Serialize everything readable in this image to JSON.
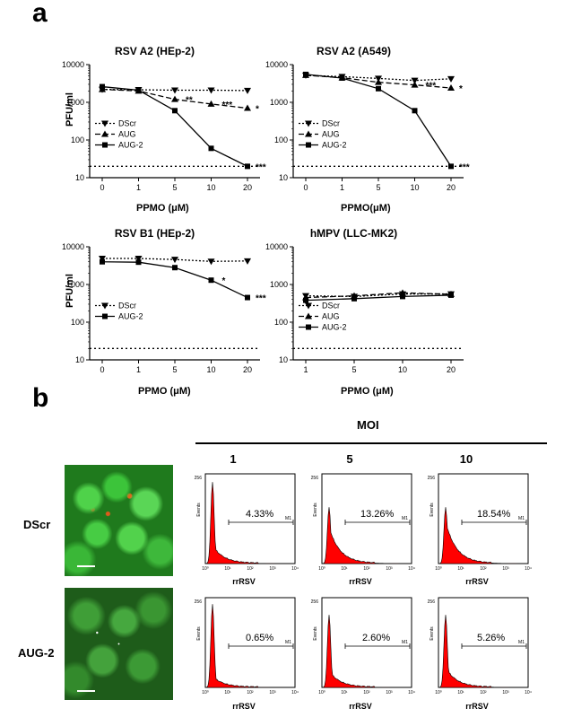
{
  "panel_a_label": "a",
  "panel_b_label": "b",
  "chart_data": [
    {
      "type": "line",
      "title": "RSV A2 (HEp-2)",
      "xlabel": "PPMO (μM)",
      "ylabel": "PFU/ml",
      "yscale": "log",
      "ylim": [
        10,
        10000
      ],
      "y_tick_labels": [
        "10",
        "100",
        "1000",
        "10000"
      ],
      "categories": [
        "0",
        "1",
        "5",
        "10",
        "20"
      ],
      "detection_limit": 20,
      "series": [
        {
          "name": "DScr",
          "marker": "triangle-down",
          "dash": "dotted",
          "values": [
            2200,
            2150,
            2100,
            2100,
            2050
          ]
        },
        {
          "name": "AUG",
          "marker": "triangle-up",
          "dash": "dashed",
          "values": [
            2200,
            2000,
            1200,
            900,
            700
          ]
        },
        {
          "name": "AUG-2",
          "marker": "square",
          "dash": "solid",
          "values": [
            2600,
            2100,
            600,
            60,
            20
          ]
        }
      ],
      "annotations": [
        {
          "category": "5",
          "text": "**"
        },
        {
          "category": "10",
          "text": "***"
        },
        {
          "category": "20",
          "text": "*"
        },
        {
          "category": "20",
          "text": "***"
        }
      ]
    },
    {
      "type": "line",
      "title": "RSV A2 (A549)",
      "xlabel": "PPMO(μM)",
      "ylabel": "",
      "yscale": "log",
      "ylim": [
        10,
        10000
      ],
      "y_tick_labels": [
        "10",
        "100",
        "1000",
        "10000"
      ],
      "categories": [
        "0",
        "1",
        "5",
        "10",
        "20"
      ],
      "detection_limit": 20,
      "series": [
        {
          "name": "DScr",
          "marker": "triangle-down",
          "dash": "dotted",
          "values": [
            5200,
            4800,
            4300,
            3800,
            4200
          ]
        },
        {
          "name": "AUG",
          "marker": "triangle-up",
          "dash": "dashed",
          "values": [
            5200,
            4500,
            3400,
            2900,
            2400
          ]
        },
        {
          "name": "AUG-2",
          "marker": "square",
          "dash": "solid",
          "values": [
            5500,
            4400,
            2300,
            600,
            20
          ]
        }
      ],
      "annotations": [
        {
          "category": "20",
          "text": "*"
        },
        {
          "category": "10",
          "text": "***"
        },
        {
          "category": "20",
          "text": "***"
        }
      ]
    },
    {
      "type": "line",
      "title": "RSV B1 (HEp-2)",
      "xlabel": "PPMO (μM)",
      "ylabel": "PFU/ml",
      "yscale": "log",
      "ylim": [
        10,
        10000
      ],
      "y_tick_labels": [
        "10",
        "100",
        "1000",
        "10000"
      ],
      "categories": [
        "0",
        "1",
        "5",
        "10",
        "20"
      ],
      "detection_limit": 20,
      "series": [
        {
          "name": "DScr",
          "marker": "triangle-down",
          "dash": "dotted",
          "values": [
            4900,
            4900,
            4600,
            4100,
            4200
          ]
        },
        {
          "name": "AUG-2",
          "marker": "square",
          "dash": "solid",
          "values": [
            4000,
            3900,
            2800,
            1300,
            450
          ]
        }
      ],
      "annotations": [
        {
          "category": "10",
          "text": "*"
        },
        {
          "category": "20",
          "text": "***"
        }
      ]
    },
    {
      "type": "line",
      "title": "hMPV (LLC-MK2)",
      "xlabel": "PPMO (μM)",
      "ylabel": "",
      "yscale": "log",
      "ylim": [
        10,
        10000
      ],
      "y_tick_labels": [
        "10",
        "100",
        "1000",
        "10000"
      ],
      "categories": [
        "1",
        "5",
        "10",
        "20"
      ],
      "detection_limit": 20,
      "series": [
        {
          "name": "DScr",
          "marker": "triangle-down",
          "dash": "dotted",
          "values": [
            500,
            480,
            560,
            560
          ]
        },
        {
          "name": "AUG",
          "marker": "triangle-up",
          "dash": "dashed",
          "values": [
            450,
            500,
            600,
            550
          ]
        },
        {
          "name": "AUG-2",
          "marker": "square",
          "dash": "solid",
          "values": [
            380,
            420,
            480,
            520
          ]
        }
      ],
      "annotations": []
    }
  ],
  "panel_b": {
    "moi_header": "MOI",
    "moi_columns": [
      "1",
      "5",
      "10"
    ],
    "rows": [
      {
        "label": "DScr",
        "percents": [
          "4.33%",
          "13.26%",
          "18.54%"
        ]
      },
      {
        "label": "AUG-2",
        "percents": [
          "0.65%",
          "2.60%",
          "5.26%"
        ]
      }
    ],
    "histogram": {
      "xlabel": "rrRSV",
      "ylabel": "Events",
      "y_max_label": "256",
      "gate_label": "M1",
      "x_tick_labels": [
        "10⁰",
        "10¹",
        "10²",
        "10³",
        "10⁴"
      ],
      "fill_color": "#ff0000"
    }
  }
}
